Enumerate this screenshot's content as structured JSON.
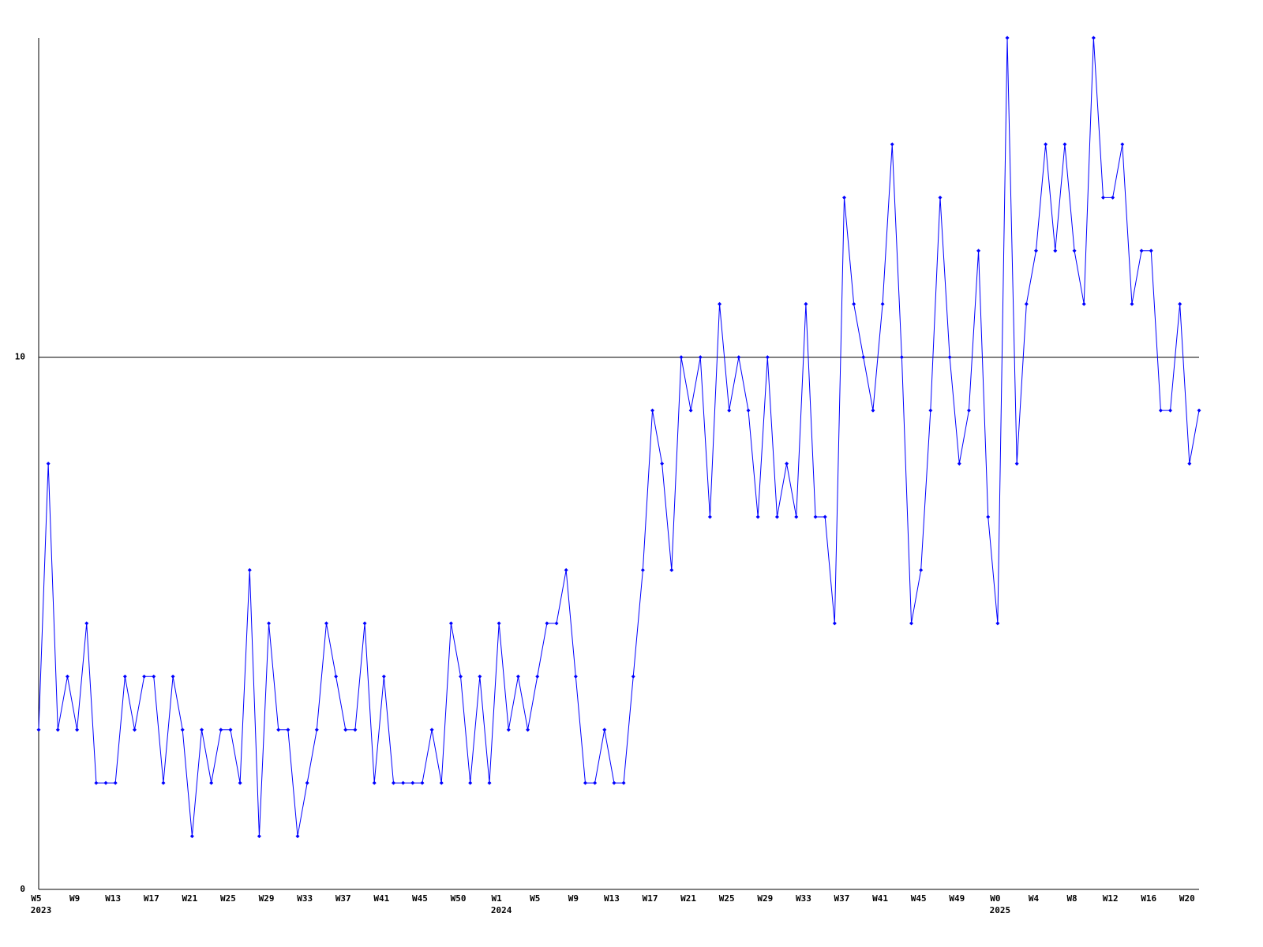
{
  "chart_data": {
    "type": "line",
    "categories": [
      "W5",
      null,
      null,
      null,
      "W9",
      null,
      null,
      null,
      "W13",
      null,
      null,
      null,
      "W17",
      null,
      null,
      null,
      "W21",
      null,
      null,
      null,
      "W25",
      null,
      null,
      null,
      "W29",
      null,
      null,
      null,
      "W33",
      null,
      null,
      null,
      "W37",
      null,
      null,
      null,
      "W41",
      null,
      null,
      null,
      "W45",
      null,
      null,
      null,
      "W50",
      null,
      null,
      null,
      "W1",
      null,
      null,
      null,
      "W5",
      null,
      null,
      null,
      "W9",
      null,
      null,
      null,
      "W13",
      null,
      null,
      null,
      "W17",
      null,
      null,
      null,
      "W21",
      null,
      null,
      null,
      "W25",
      null,
      null,
      null,
      "W29",
      null,
      null,
      null,
      "W33",
      null,
      null,
      null,
      "W37",
      null,
      null,
      null,
      "W41",
      null,
      null,
      null,
      "W45",
      null,
      null,
      null,
      "W49",
      null,
      null,
      null,
      "W0",
      null,
      null,
      null,
      "W4",
      null,
      null,
      null,
      "W8",
      null,
      null,
      null,
      "W12",
      null,
      null,
      null,
      "W16",
      null,
      null,
      null,
      "W20",
      null
    ],
    "year_labels": [
      "2023",
      null,
      null,
      null,
      null,
      null,
      null,
      null,
      null,
      null,
      null,
      null,
      null,
      null,
      null,
      null,
      null,
      null,
      null,
      null,
      null,
      null,
      null,
      null,
      null,
      null,
      null,
      null,
      null,
      null,
      null,
      null,
      null,
      null,
      null,
      null,
      null,
      null,
      null,
      null,
      null,
      null,
      null,
      null,
      null,
      null,
      null,
      null,
      "2024",
      null,
      null,
      null,
      null,
      null,
      null,
      null,
      null,
      null,
      null,
      null,
      null,
      null,
      null,
      null,
      null,
      null,
      null,
      null,
      null,
      null,
      null,
      null,
      null,
      null,
      null,
      null,
      null,
      null,
      null,
      null,
      null,
      null,
      null,
      null,
      null,
      null,
      null,
      null,
      null,
      null,
      null,
      null,
      null,
      null,
      null,
      null,
      null,
      null,
      null,
      null,
      "2025",
      null,
      null,
      null,
      null,
      null,
      null,
      null,
      null,
      null,
      null,
      null,
      null,
      null,
      null,
      null,
      null,
      null,
      null,
      null,
      null,
      null
    ],
    "series": [
      {
        "color": "#0000ff",
        "values": [
          3,
          8,
          3,
          4,
          3,
          5,
          2,
          2,
          2,
          4,
          3,
          4,
          4,
          2,
          4,
          3,
          1,
          3,
          2,
          3,
          3,
          2,
          6,
          1,
          5,
          3,
          3,
          1,
          2,
          3,
          5,
          4,
          3,
          3,
          5,
          2,
          4,
          2,
          2,
          2,
          2,
          3,
          2,
          5,
          4,
          2,
          4,
          2,
          5,
          3,
          4,
          3,
          4,
          5,
          5,
          6,
          4,
          2,
          2,
          3,
          2,
          2,
          4,
          6,
          9,
          8,
          6,
          10,
          9,
          10,
          7,
          11,
          9,
          10,
          9,
          7,
          10,
          7,
          8,
          7,
          11,
          7,
          7,
          5,
          13,
          11,
          10,
          9,
          11,
          14,
          10,
          5,
          6,
          9,
          13,
          10,
          8,
          9,
          12,
          7,
          5,
          16,
          8,
          11,
          12,
          14,
          12,
          14,
          12,
          11,
          16,
          13,
          13,
          14,
          11,
          12,
          12,
          9,
          9,
          11,
          8,
          9
        ]
      }
    ],
    "ylim": [
      0,
      16
    ],
    "yticks": [
      0,
      10
    ],
    "grid": true
  }
}
